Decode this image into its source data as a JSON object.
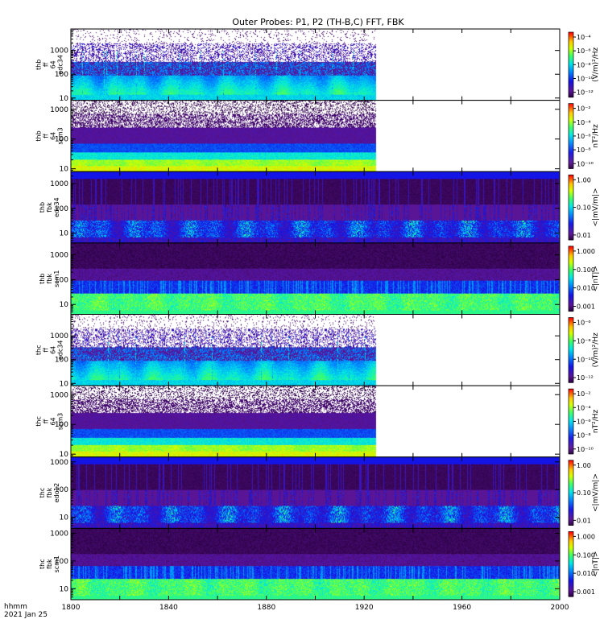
{
  "chart_data": {
    "type": "heatmap",
    "title": "Outer Probes: P1, P2 (TH-B,C) FFT, FBK",
    "xaxis": {
      "range": [
        1800,
        2000
      ],
      "ticks": [
        "1800",
        "1820",
        "1840",
        "1860",
        "1880",
        "1900",
        "1920",
        "1940",
        "1960",
        "1980",
        "2000"
      ],
      "label_line1": "hhmm",
      "label_line2": "2021 Jan 25"
    },
    "panels": [
      {
        "label_lines": [
          "thb",
          "ff",
          "64",
          "edc34"
        ],
        "yscale": "log",
        "yrange": [
          8,
          8000
        ],
        "yticks": [
          "10",
          "100",
          "1000"
        ],
        "data_end": 1925,
        "style": "fft_e",
        "colorbar": {
          "unit": "(V/m)²/Hz",
          "ticks": [
            "10⁻⁴",
            "10⁻⁶",
            "10⁻⁸",
            "10⁻¹⁰",
            "10⁻¹²"
          ]
        }
      },
      {
        "label_lines": [
          "thb",
          "ff",
          "64",
          "scm3"
        ],
        "yscale": "log",
        "yrange": [
          8,
          2000
        ],
        "yticks": [
          "10",
          "100",
          "1000"
        ],
        "data_end": 1925,
        "style": "fft_b",
        "colorbar": {
          "unit": "nT²/Hz",
          "ticks": [
            "10⁻²",
            "10⁻⁴",
            "10⁻⁶",
            "10⁻⁸",
            "10⁻¹⁰"
          ]
        }
      },
      {
        "label_lines": [
          "thb",
          "fbk",
          "edc34"
        ],
        "yscale": "log",
        "yrange": [
          4,
          3000
        ],
        "yticks": [
          "10",
          "100",
          "1000"
        ],
        "data_end": 2000,
        "style": "fbk_e",
        "colorbar": {
          "unit": "<|mV/m|>",
          "ticks": [
            "1.00",
            "0.10",
            "0.01"
          ]
        }
      },
      {
        "label_lines": [
          "thb",
          "fbk",
          "scm1"
        ],
        "yscale": "log",
        "yrange": [
          4,
          3000
        ],
        "yticks": [
          "10",
          "100",
          "1000"
        ],
        "data_end": 2000,
        "style": "fbk_b",
        "colorbar": {
          "unit": "<|nT|>",
          "ticks": [
            "1.000",
            "0.100",
            "0.010",
            "0.001"
          ]
        }
      },
      {
        "label_lines": [
          "thc",
          "ff",
          "64",
          "edc34"
        ],
        "yscale": "log",
        "yrange": [
          8,
          8000
        ],
        "yticks": [
          "10",
          "100",
          "1000"
        ],
        "data_end": 1925,
        "style": "fft_e",
        "colorbar": {
          "unit": "(V/m)²/Hz",
          "ticks": [
            "10⁻⁶",
            "10⁻⁸",
            "10⁻¹⁰",
            "10⁻¹²"
          ]
        }
      },
      {
        "label_lines": [
          "thc",
          "ff",
          "64",
          "scm3"
        ],
        "yscale": "log",
        "yrange": [
          8,
          2000
        ],
        "yticks": [
          "10",
          "100",
          "1000"
        ],
        "data_end": 1925,
        "style": "fft_b",
        "colorbar": {
          "unit": "nT²/Hz",
          "ticks": [
            "10⁻²",
            "10⁻⁴",
            "10⁻⁶",
            "10⁻⁸",
            "10⁻¹⁰"
          ]
        }
      },
      {
        "label_lines": [
          "thc",
          "fbk",
          "edc12"
        ],
        "yscale": "log",
        "yrange": [
          4,
          1500
        ],
        "yticks": [
          "10",
          "100",
          "1000"
        ],
        "data_end": 2000,
        "style": "fbk_e",
        "colorbar": {
          "unit": "<|mV/m|>",
          "ticks": [
            "1.00",
            "0.10",
            "0.01"
          ]
        }
      },
      {
        "label_lines": [
          "thc",
          "fbk",
          "scm1"
        ],
        "yscale": "log",
        "yrange": [
          4,
          1500
        ],
        "yticks": [
          "10",
          "100",
          "1000"
        ],
        "data_end": 2000,
        "style": "fbk_b",
        "colorbar": {
          "unit": "<|nT|>",
          "ticks": [
            "1.000",
            "0.100",
            "0.010",
            "0.001"
          ]
        }
      }
    ]
  }
}
